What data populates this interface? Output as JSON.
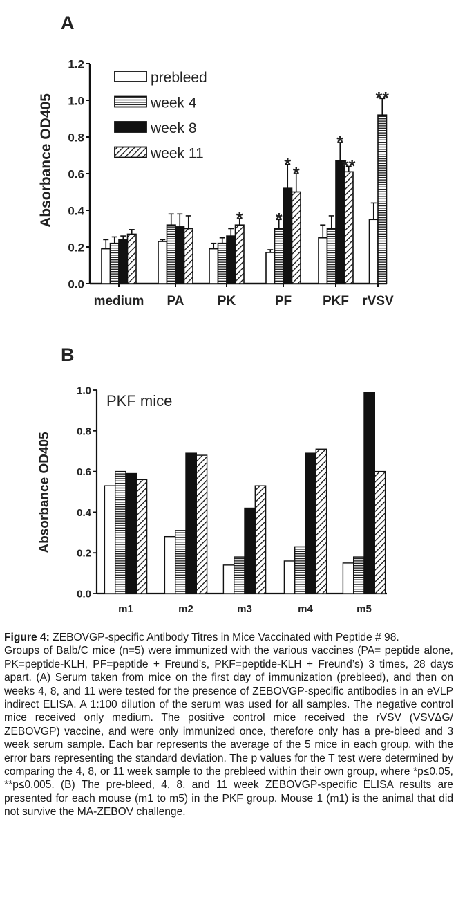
{
  "chart_data": [
    {
      "type": "bar",
      "panel_label": "A",
      "ylabel": "Absorbance OD405",
      "ylim": [
        0,
        1.2
      ],
      "yticks": [
        "0.0",
        "0.2",
        "0.4",
        "0.6",
        "0.8",
        "1.0",
        "1.2"
      ],
      "categories": [
        "medium",
        "PA",
        "PK",
        "PF",
        "PKF",
        "rVSV"
      ],
      "legend_position": "top-left",
      "series": [
        {
          "name": "prebleed",
          "pattern": "white",
          "values": [
            0.19,
            0.23,
            0.19,
            0.17,
            0.25,
            0.35
          ],
          "errors": [
            0.05,
            0.01,
            0.03,
            0.015,
            0.07,
            0.09
          ],
          "sig": [
            "",
            "",
            "",
            "",
            "",
            ""
          ]
        },
        {
          "name": "week 4",
          "pattern": "horizontal",
          "values": [
            0.22,
            0.32,
            0.22,
            0.3,
            0.3,
            0.92
          ],
          "errors": [
            0.035,
            0.06,
            0.03,
            0.05,
            0.07,
            0.09
          ],
          "sig": [
            "",
            "",
            "",
            "*",
            "",
            "**"
          ]
        },
        {
          "name": "week 8",
          "pattern": "black",
          "values": [
            0.24,
            0.31,
            0.26,
            0.52,
            0.67,
            null
          ],
          "errors": [
            0.02,
            0.07,
            0.04,
            0.13,
            0.1,
            null
          ],
          "sig": [
            "",
            "",
            "",
            "*",
            "*",
            ""
          ]
        },
        {
          "name": "week 11",
          "pattern": "diagonal",
          "values": [
            0.27,
            0.3,
            0.32,
            0.5,
            0.61,
            null
          ],
          "errors": [
            0.025,
            0.07,
            0.035,
            0.1,
            0.03,
            null
          ],
          "sig": [
            "",
            "",
            "*",
            "*",
            "**",
            ""
          ]
        }
      ]
    },
    {
      "type": "bar",
      "panel_label": "B",
      "ylabel": "Absorbance OD405",
      "ylim": [
        0,
        1.0
      ],
      "yticks": [
        "0.0",
        "0.2",
        "0.4",
        "0.6",
        "0.8",
        "1.0"
      ],
      "annotation": "PKF mice",
      "categories": [
        "m1",
        "m2",
        "m3",
        "m4",
        "m5"
      ],
      "series": [
        {
          "name": "prebleed",
          "pattern": "white",
          "values": [
            0.53,
            0.28,
            0.14,
            0.16,
            0.15
          ]
        },
        {
          "name": "week 4",
          "pattern": "horizontal",
          "values": [
            0.6,
            0.31,
            0.18,
            0.23,
            0.18
          ]
        },
        {
          "name": "week 8",
          "pattern": "black",
          "values": [
            0.59,
            0.69,
            0.42,
            0.69,
            0.99
          ]
        },
        {
          "name": "week 11",
          "pattern": "diagonal",
          "values": [
            0.56,
            0.68,
            0.53,
            0.71,
            0.6
          ]
        }
      ]
    }
  ],
  "caption": {
    "title_bold": "Figure 4:",
    "title_text": " ZEBOVGP-specific Antibody Titres in Mice Vaccinated with Peptide # 98.",
    "body": "Groups of Balb/C mice (n=5) were immunized with the various vaccines (PA= peptide alone, PK=peptide-KLH, PF=peptide + Freund’s, PKF=peptide-KLH + Freund’s) 3 times, 28 days apart. (A) Serum taken from mice on the first day of immunization (prebleed), and then on weeks 4, 8, and 11 were tested for the presence of ZEBOVGP-specific antibodies in an eVLP indirect ELISA. A 1:100 dilution of the serum was used for all samples. The negative control mice received only medium. The positive control mice received the rVSV (VSVΔG/ ZEBOVGP) vaccine, and were only immunized once, therefore only has a pre-bleed and 3 week serum sample. Each bar represents the average of the 5 mice in each group, with the error bars representing the standard deviation. The p values for the T test were determined by comparing the 4, 8, or 11 week sample to the prebleed within their own group, where *p≤0.05, **p≤0.005. (B) The pre-bleed, 4, 8, and 11 week ZEBOVGP-specific ELISA results are presented for each mouse (m1 to m5) in the PKF group. Mouse 1 (m1) is the animal that did not survive the MA-ZEBOV challenge."
  }
}
